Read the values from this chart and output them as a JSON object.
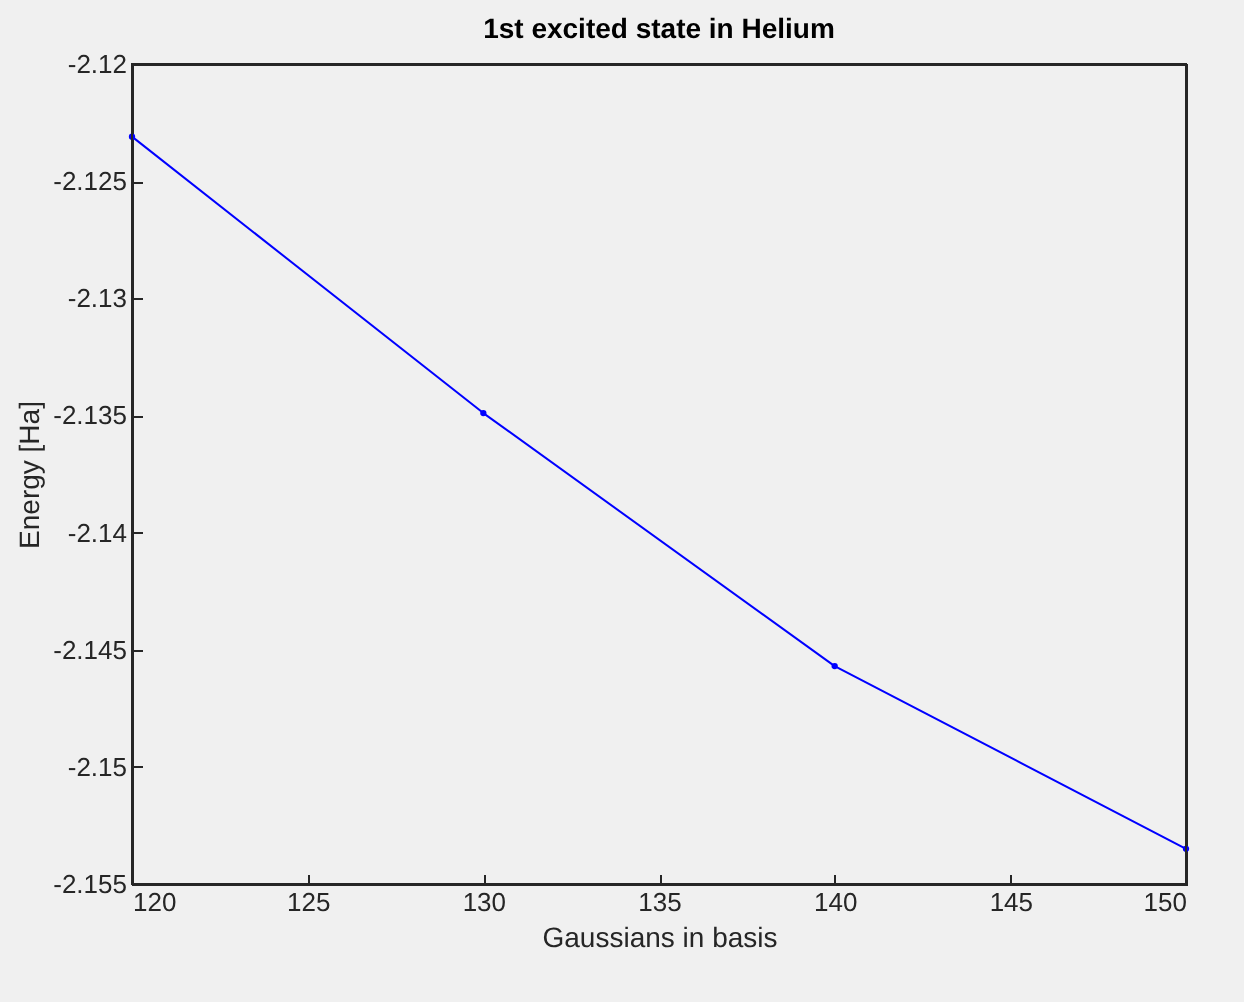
{
  "chart_data": {
    "type": "line",
    "title": "1st excited state in Helium",
    "xlabel": "Gaussians in basis",
    "ylabel": "Energy [Ha]",
    "x": [
      120,
      130,
      140,
      150
    ],
    "series": [
      {
        "color": "#0000ff",
        "values": [
          -2.1231,
          -2.1349,
          -2.1457,
          -2.1535
        ]
      }
    ],
    "xlim": [
      120,
      150
    ],
    "xticks": [
      120,
      125,
      130,
      135,
      140,
      145,
      150
    ],
    "ylim": [
      -2.155,
      -2.12
    ],
    "yticks": [
      -2.155,
      -2.15,
      -2.145,
      -2.14,
      -2.135,
      -2.13,
      -2.125,
      -2.12
    ],
    "marker": "circle",
    "line_style": "solid"
  }
}
